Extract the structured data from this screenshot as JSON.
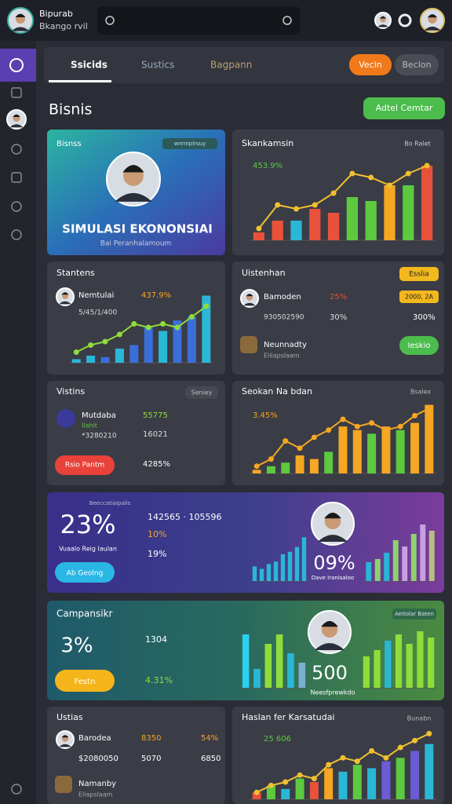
{
  "header": {
    "brand_line1": "Bipurab",
    "brand_line2": "Bkango rvil"
  },
  "tabs": [
    "Ssicids",
    "Sustics",
    "Bagpann"
  ],
  "tab_buttons": [
    "Vecin",
    "Beclon"
  ],
  "page_title": "Bisnis",
  "action_button": "Adtel Cemtar",
  "hero": {
    "label": "Bisnss",
    "badge": "wnnnplrsuy",
    "title": "SIMULASI EKONONSIAI",
    "subtitle": "Bai Peranhalamoum"
  },
  "sk": {
    "title": "Skankamsin",
    "legend": "Bo Ralet",
    "note": "453.9%"
  },
  "stantens": {
    "title": "Stantens",
    "name": "Nemtulai",
    "pct": "437.9%",
    "sub": "5/45/1/400"
  },
  "uisten": {
    "title": "Uistenhan",
    "badge": "Esslia",
    "name": "Bamoden",
    "id": "930502590",
    "pct1": "25%",
    "pct2": "30%",
    "tag": "2000, 2A",
    "pct3": "300%",
    "item": "Neunnadty",
    "item_sub": "Elilapslaam",
    "button": "Ieskio"
  },
  "vistins": {
    "title": "Vistins",
    "badge": "Seniey",
    "name": "Mutdaba",
    "sub1": "Ilahit",
    "sub2": "*3280210",
    "v1": "55775",
    "v2": "16021",
    "button": "Rsio Pantm",
    "v3": "4285%"
  },
  "seokan": {
    "title": "Seokan Na bdan",
    "badge": "Bsalex",
    "note": "3.45%"
  },
  "banner": {
    "label": "Beeccatiaipalis",
    "big": "23%",
    "caption": "Vuaalo Reig laulan",
    "button": "Ab Geolng",
    "stat1": "142565 · 105596",
    "stat2": "10%",
    "stat3": "19%",
    "big2": "09%",
    "caption2": "Dave Iranisaloo"
  },
  "green": {
    "title": "Campansikr",
    "big": "3%",
    "stat1": "1304",
    "button": "Festn",
    "stat2": "4.31%",
    "badge": "Aeitolar Baten",
    "big2": "500",
    "caption": "Neesfprewkdo"
  },
  "ustias": {
    "title": "Ustias",
    "name": "Barodea",
    "sub": "$2080050",
    "v1": "8350",
    "v2": "5070",
    "v3": "54%",
    "v4": "6850",
    "item": "Namanby",
    "item_sub": "Eliapslaam"
  },
  "haslan": {
    "title": "Haslan fer Karsatudai",
    "badge": "Bunabn",
    "note": "25 606"
  },
  "charts": {
    "sk": {
      "ylim": [
        0,
        100
      ],
      "bars": [
        10,
        25,
        25,
        40,
        35,
        55,
        50,
        70,
        70,
        95
      ],
      "colors": [
        "#e8513a",
        "#e8513a",
        "#2ab7d6",
        "#e8513a",
        "#e8513a",
        "#5cc93f",
        "#5cc93f",
        "#f5a623",
        "#5cc93f",
        "#e8513a"
      ],
      "line": [
        15,
        45,
        40,
        45,
        60,
        85,
        80,
        70,
        85,
        95
      ],
      "line_color": "#f0c030"
    },
    "stantens": {
      "ylim": [
        0,
        100
      ],
      "bars": [
        5,
        10,
        8,
        20,
        25,
        50,
        45,
        60,
        65,
        95
      ],
      "colors": [
        "#2ab7d6",
        "#2ab7d6",
        "#3a6fd8",
        "#2ab7d6",
        "#3a6fd8",
        "#3a6fd8",
        "#2ab7d6",
        "#3a6fd8",
        "#3a6fd8",
        "#2ab7d6"
      ],
      "line": [
        15,
        25,
        30,
        40,
        55,
        50,
        55,
        50,
        65,
        80
      ],
      "line_color": "#8fdc3a"
    },
    "seokan": {
      "ylim": [
        0,
        100
      ],
      "bars": [
        5,
        10,
        15,
        25,
        20,
        30,
        65,
        60,
        55,
        65,
        60,
        70,
        95
      ],
      "colors": [
        "#f5a623",
        "#5cc93f",
        "#5cc93f",
        "#f5a623",
        "#f5a623",
        "#5cc93f",
        "#f5a623",
        "#f5a623",
        "#5cc93f",
        "#f5a623",
        "#5cc93f",
        "#f5a623",
        "#f5a623"
      ],
      "line": [
        10,
        20,
        45,
        35,
        50,
        60,
        75,
        65,
        70,
        60,
        65,
        80,
        90
      ],
      "line_color": "#f5a623"
    },
    "banner_left": {
      "ylim": [
        0,
        100
      ],
      "bars": [
        30,
        25,
        35,
        40,
        55,
        60,
        70,
        90
      ],
      "colors": [
        "#2ab7d6",
        "#2ab7d6",
        "#2ab7d6",
        "#2ab7d6",
        "#2ab7d6",
        "#2ab7d6",
        "#2ab7d6",
        "#2ab7d6"
      ]
    },
    "banner_right": {
      "ylim": [
        0,
        100
      ],
      "bars": [
        30,
        35,
        45,
        65,
        55,
        75,
        90,
        80
      ],
      "colors": [
        "#2ab7d6",
        "#8fd06f",
        "#2ab7d6",
        "#8fd06f",
        "#c7a0e0",
        "#8fd06f",
        "#c7a0e0",
        "#b8c080"
      ]
    },
    "green_left": {
      "ylim": [
        0,
        100
      ],
      "bars": [
        85,
        30,
        70,
        85,
        55,
        40
      ],
      "colors": [
        "#2ad0f0",
        "#2ab7d6",
        "#8fdc3a",
        "#8fdc3a",
        "#2ab7d6",
        "#7ab0d0"
      ]
    },
    "green_right": {
      "ylim": [
        0,
        100
      ],
      "bars": [
        50,
        60,
        75,
        85,
        70,
        90,
        80
      ],
      "colors": [
        "#8fdc3a",
        "#8fdc3a",
        "#2ab7d6",
        "#8fdc3a",
        "#8fdc3a",
        "#8fdc3a",
        "#8fdc3a"
      ]
    },
    "haslan": {
      "ylim": [
        0,
        100
      ],
      "bars": [
        10,
        20,
        15,
        30,
        25,
        45,
        40,
        50,
        45,
        55,
        60,
        70,
        80
      ],
      "colors": [
        "#e8513a",
        "#5cc93f",
        "#2ab7d6",
        "#5cc93f",
        "#e8513a",
        "#f5a623",
        "#2ab7d6",
        "#5cc93f",
        "#2ab7d6",
        "#6b5cd6",
        "#5cc93f",
        "#6b5cd6",
        "#2ab7d6"
      ],
      "line": [
        10,
        20,
        25,
        35,
        30,
        50,
        60,
        55,
        70,
        60,
        75,
        85,
        95
      ],
      "line_color": "#f0c030"
    }
  }
}
